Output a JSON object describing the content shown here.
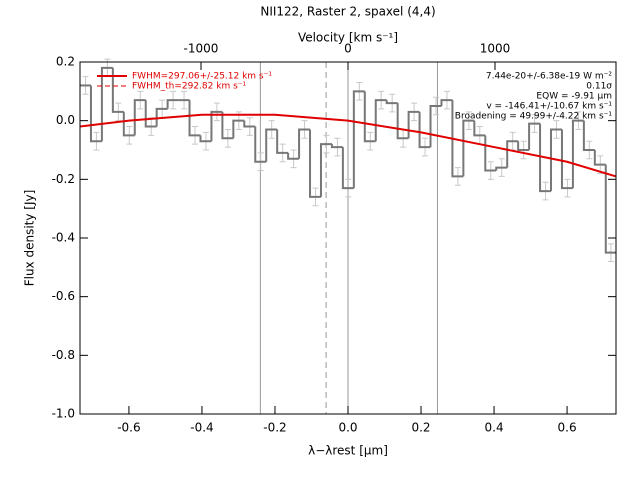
{
  "chart_data": {
    "type": "histogram",
    "title": "NII122, Raster 2, spaxel (4,4)",
    "x_label": "λ−λrest [μm]",
    "y_label": "Flux density [Jy]",
    "x2_label": "Velocity [km s⁻¹]",
    "bins": [
      -0.734,
      -0.704,
      -0.674,
      -0.644,
      -0.614,
      -0.584,
      -0.554,
      -0.524,
      -0.494,
      -0.464,
      -0.434,
      -0.404,
      -0.374,
      -0.344,
      -0.314,
      -0.284,
      -0.254,
      -0.224,
      -0.194,
      -0.164,
      -0.134,
      -0.104,
      -0.074,
      -0.044,
      -0.014,
      0.016,
      0.046,
      0.076,
      0.106,
      0.136,
      0.166,
      0.196,
      0.226,
      0.256,
      0.286,
      0.316,
      0.346,
      0.376,
      0.406,
      0.436,
      0.466,
      0.496,
      0.526,
      0.556,
      0.586,
      0.616,
      0.646,
      0.676,
      0.706,
      0.734
    ],
    "values": [
      0.12,
      -0.07,
      0.18,
      0.03,
      -0.05,
      0.07,
      -0.02,
      0.04,
      0.07,
      0.07,
      -0.05,
      -0.07,
      0.03,
      -0.06,
      0.0,
      -0.02,
      -0.14,
      -0.03,
      -0.11,
      -0.13,
      -0.03,
      -0.26,
      -0.08,
      -0.09,
      -0.23,
      0.1,
      -0.07,
      0.07,
      0.06,
      -0.06,
      0.03,
      -0.09,
      0.05,
      0.07,
      -0.19,
      0.0,
      -0.05,
      -0.17,
      -0.16,
      -0.07,
      -0.1,
      -0.01,
      -0.24,
      -0.03,
      -0.23,
      0.0,
      -0.1,
      -0.15,
      -0.45
    ],
    "errors": [
      0.03,
      0.03,
      0.03,
      0.03,
      0.03,
      0.03,
      0.03,
      0.03,
      0.03,
      0.03,
      0.03,
      0.03,
      0.03,
      0.03,
      0.03,
      0.03,
      0.03,
      0.03,
      0.03,
      0.03,
      0.03,
      0.03,
      0.03,
      0.03,
      0.03,
      0.03,
      0.03,
      0.03,
      0.03,
      0.03,
      0.03,
      0.03,
      0.03,
      0.03,
      0.03,
      0.03,
      0.03,
      0.03,
      0.03,
      0.03,
      0.03,
      0.03,
      0.03,
      0.03,
      0.03,
      0.03,
      0.03,
      0.03,
      0.03
    ],
    "color": "#777777",
    "error_color": "#c8c8c8",
    "fit": {
      "x": [
        -0.734,
        -0.6,
        -0.4,
        -0.2,
        0.0,
        0.2,
        0.4,
        0.6,
        0.734
      ],
      "values": [
        -0.02,
        0.0,
        0.02,
        0.02,
        0.0,
        -0.04,
        -0.09,
        -0.14,
        -0.19
      ],
      "color": "#e00000"
    },
    "vlines": [
      {
        "value": -0.24,
        "dashed": false
      },
      {
        "value": -0.06,
        "dashed": true
      },
      {
        "value": 0.0,
        "dashed": false
      },
      {
        "value": 0.245,
        "dashed": false
      }
    ],
    "legend": [
      "FWHM=297.06+/-25.12 km s⁻¹",
      "FWHM_th=292.82 km s⁻¹"
    ],
    "annotations": [
      "7.44e-20+/-6.38e-19 W m⁻²",
      "0.11σ",
      "EQW = -9.91 μm",
      "v = -146.41+/-10.67 km s⁻¹",
      "Broadening = 49.99+/-4.22 km s⁻¹"
    ],
    "xlim": [
      -0.734,
      0.734
    ],
    "xticks": [
      -0.6,
      -0.4,
      -0.2,
      {
        "value": 0,
        "label": "0.0"
      },
      0.2,
      0.4,
      0.6
    ],
    "ylim": [
      -1.0,
      0.2
    ],
    "yticks": [
      0.2,
      {
        "value": 0,
        "label": "0.0"
      },
      -0.2,
      -0.4,
      -0.6,
      -0.8,
      {
        "value": -1,
        "label": "-1.0"
      }
    ],
    "x2lim": [
      -1823,
      1823
    ],
    "x2ticks": [
      -1000,
      0,
      1000
    ]
  }
}
